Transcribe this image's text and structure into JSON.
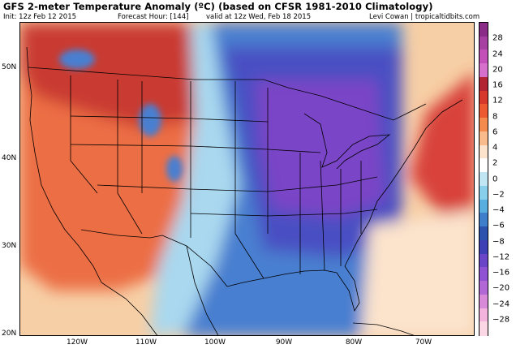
{
  "header": {
    "title": "GFS 2-meter Temperature Anomaly (ºC) (based on CFSR 1981-2010 Climatology)",
    "init": "Init: 12z Feb 12 2015",
    "forecast_hour": "Forecast Hour: [144]",
    "valid": "valid at 12z Wed, Feb 18 2015",
    "credit": "Levi Cowan | tropicaltidbits.com"
  },
  "axes": {
    "lat_labels": [
      "50N",
      "40N",
      "30N",
      "20N"
    ],
    "lon_labels": [
      "120W",
      "110W",
      "100W",
      "90W",
      "80W",
      "70W"
    ]
  },
  "colorbar": {
    "labels": [
      "28",
      "24",
      "20",
      "16",
      "12",
      "8",
      "6",
      "4",
      "2",
      "0",
      "−2",
      "−4",
      "−6",
      "−8",
      "−12",
      "−16",
      "−20",
      "−24",
      "−28"
    ],
    "colors": [
      "#8a2b88",
      "#a73fa2",
      "#c250b8",
      "#d670cc",
      "#b32432",
      "#d6382c",
      "#ed5a32",
      "#f58a4e",
      "#f9bb8c",
      "#fde3cc",
      "#ffffff",
      "#bfe6f2",
      "#87cfea",
      "#57aedf",
      "#3f7ecb",
      "#2c52ad",
      "#3e3fb5",
      "#6a45c8",
      "#8e52d3",
      "#b168d6",
      "#d889d8",
      "#f3b3dc",
      "#fbd6e4"
    ]
  },
  "colors": {
    "ocean_warm": "#f7cfa6",
    "west_warm": "#ec6e45",
    "northwest_hot": "#c93a30",
    "central_cold": "#4a4fc2",
    "deep_cold": "#7a45c6",
    "plains_blue": "#4a7fd0",
    "light_blue": "#a9d8ef",
    "atlantic_warm": "#d8433a",
    "atlantic_pale": "#fbe3cc"
  }
}
